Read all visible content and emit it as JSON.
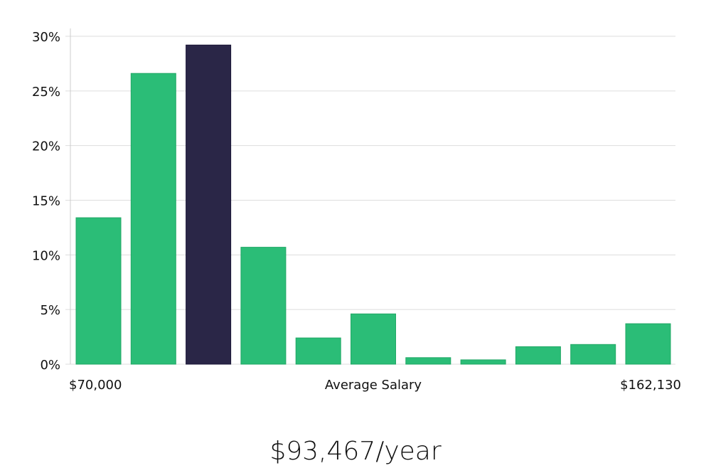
{
  "colors": {
    "bar": "#2bbd77",
    "highlight": "#2a2647",
    "grid": "#dddddd",
    "axis": "#cccccc"
  },
  "chart_data": {
    "type": "bar",
    "title": "",
    "xlabel": "Average Salary",
    "ylabel": "",
    "x_min_label": "$70,000",
    "x_max_label": "$162,130",
    "ylim": [
      0,
      30
    ],
    "yticks": [
      0,
      5,
      10,
      15,
      20,
      25,
      30
    ],
    "ytick_labels": [
      "0%",
      "5%",
      "10%",
      "15%",
      "20%",
      "25%",
      "30%"
    ],
    "values": [
      13.4,
      26.6,
      29.2,
      10.7,
      2.4,
      4.6,
      0.6,
      0.4,
      1.6,
      1.8,
      3.7
    ],
    "highlight_index": 2,
    "grid": true
  },
  "salary_display": "$93,467/year"
}
